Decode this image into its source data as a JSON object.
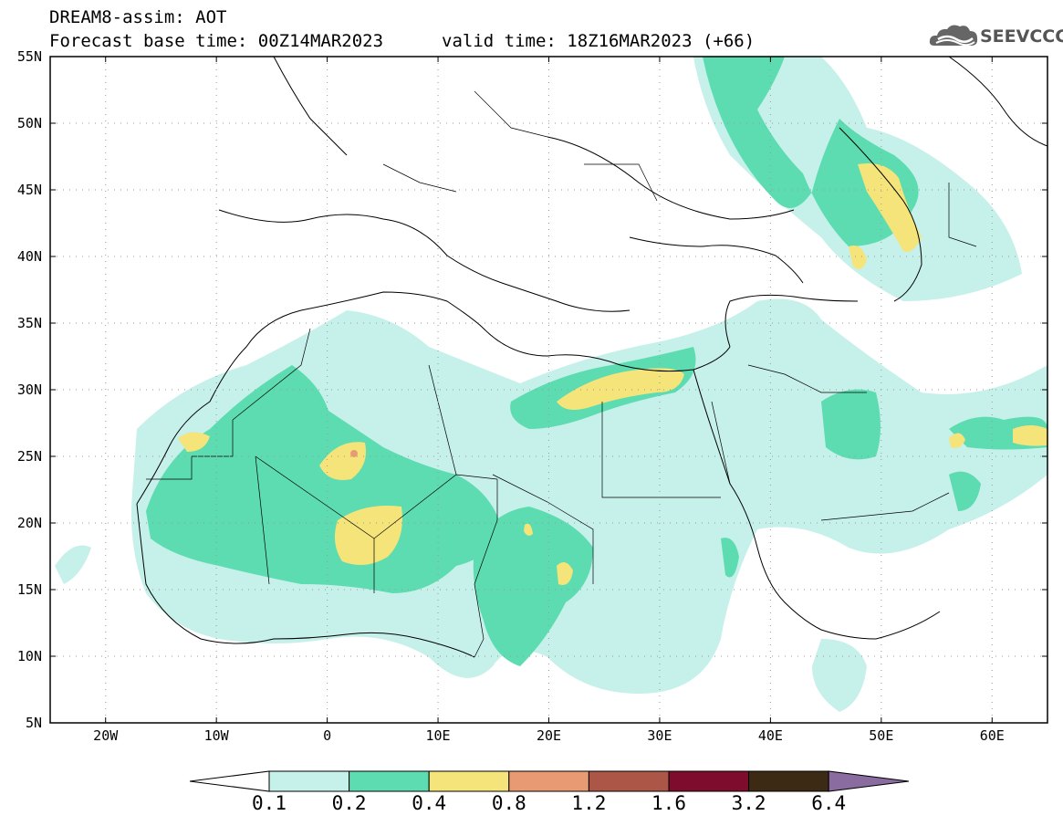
{
  "header": {
    "title": "DREAM8-assim: AOT",
    "base_time": "Forecast base time: 00Z14MAR2023",
    "valid_time": "valid time: 18Z16MAR2023 (+66)"
  },
  "logo": {
    "text": "SEEVCCC",
    "icon": "cloud-logo-icon"
  },
  "axes": {
    "lat_labels": [
      "55N",
      "50N",
      "45N",
      "40N",
      "35N",
      "30N",
      "25N",
      "20N",
      "15N",
      "10N",
      "5N"
    ],
    "lat_values": [
      55,
      50,
      45,
      40,
      35,
      30,
      25,
      20,
      15,
      10,
      5
    ],
    "lon_labels": [
      "20W",
      "10W",
      "0",
      "10E",
      "20E",
      "30E",
      "40E",
      "50E",
      "60E"
    ],
    "lon_values": [
      -20,
      -10,
      0,
      10,
      20,
      30,
      40,
      50,
      60
    ],
    "lon_range": [
      -25,
      65
    ],
    "lat_range": [
      5,
      55
    ],
    "grid": true
  },
  "colorbar": {
    "labels": [
      "0.1",
      "0.2",
      "0.4",
      "0.8",
      "1.2",
      "1.6",
      "3.2",
      "6.4"
    ],
    "colors": [
      "#c6f0ea",
      "#5cdcb0",
      "#f4e47a",
      "#e89a72",
      "#ac5648",
      "#7e0c2c",
      "#3c2a14",
      "#8a6ca0"
    ],
    "under_color": "#ffffff",
    "over_color": "#8a6ca0"
  }
}
